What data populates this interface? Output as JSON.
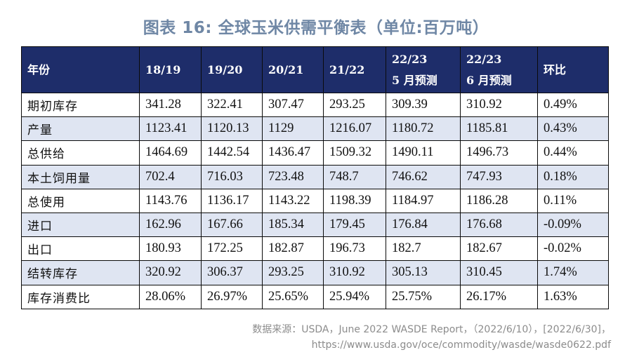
{
  "title": "图表 16: 全球玉米供需平衡表（单位:百万吨）",
  "table": {
    "headers": [
      [
        "年份"
      ],
      [
        "18/19"
      ],
      [
        "19/20"
      ],
      [
        "20/21"
      ],
      [
        "21/22"
      ],
      [
        "22/23",
        "5 月预测"
      ],
      [
        "22/23",
        "6 月预测"
      ],
      [
        "环比"
      ]
    ],
    "rows": [
      [
        "期初库存",
        "341.28",
        "322.41",
        "307.47",
        "293.25",
        "309.39",
        "310.92",
        "0.49%"
      ],
      [
        "产量",
        "1123.41",
        "1120.13",
        "1129",
        "1216.07",
        "1180.72",
        "1185.81",
        "0.43%"
      ],
      [
        "总供给",
        "1464.69",
        "1442.54",
        "1436.47",
        "1509.32",
        "1490.11",
        "1496.73",
        "0.44%"
      ],
      [
        "本土饲用量",
        "702.4",
        "716.03",
        "723.48",
        "748.7",
        "746.62",
        "747.93",
        "0.18%"
      ],
      [
        "总使用",
        "1143.76",
        "1136.17",
        "1143.22",
        "1198.39",
        "1184.97",
        "1186.28",
        "0.11%"
      ],
      [
        "进口",
        "162.96",
        "167.66",
        "185.34",
        "179.45",
        "176.84",
        "176.68",
        "-0.09%"
      ],
      [
        "出口",
        "180.93",
        "172.25",
        "182.87",
        "196.73",
        "182.7",
        "182.67",
        "-0.02%"
      ],
      [
        "结转库存",
        "320.92",
        "306.37",
        "293.25",
        "310.92",
        "305.13",
        "310.45",
        "1.74%"
      ],
      [
        "库存消费比",
        "28.06%",
        "26.97%",
        "25.65%",
        "25.94%",
        "25.75%",
        "26.17%",
        "1.63%"
      ]
    ]
  },
  "source": {
    "line1": "数据来源：USDA，June 2022 WASDE Report，（2022/6/10），[2022/6/30]，",
    "line2": "https://www.usda.gov/oce/commodity/wasde/wasde0622.pdf"
  },
  "colors": {
    "header_bg": "#1e2d6a",
    "alt_row_bg": "#dfe5f2",
    "title_color": "#6f87a5"
  }
}
